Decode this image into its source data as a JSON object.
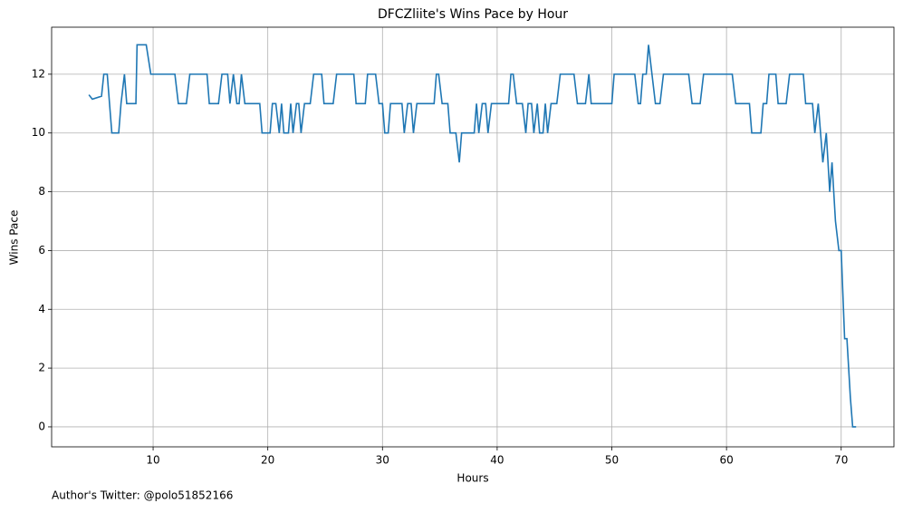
{
  "chart_data": {
    "type": "line",
    "title": "DFCZliite's Wins Pace by Hour",
    "xlabel": "Hours",
    "ylabel": "Wins Pace",
    "annotation": "Author's Twitter: @polo51852166",
    "color": "#1f77b4",
    "grid": true,
    "xlim": [
      1.15,
      74.6
    ],
    "ylim": [
      -0.68,
      13.6
    ],
    "xticks": [
      10,
      20,
      30,
      40,
      50,
      60,
      70
    ],
    "yticks": [
      0,
      2,
      4,
      6,
      8,
      10,
      12
    ],
    "x": [
      4.4,
      4.7,
      5.5,
      5.7,
      6.0,
      6.4,
      7.0,
      7.2,
      7.5,
      7.7,
      8.5,
      8.6,
      9.4,
      9.8,
      11.9,
      12.2,
      12.9,
      13.2,
      14.7,
      14.9,
      15.7,
      16.0,
      16.5,
      16.7,
      17.0,
      17.3,
      17.5,
      17.7,
      18.0,
      19.3,
      19.5,
      20.2,
      20.4,
      20.7,
      21.0,
      21.2,
      21.4,
      21.8,
      22.0,
      22.2,
      22.5,
      22.7,
      22.9,
      23.2,
      23.7,
      24.0,
      24.7,
      24.9,
      25.7,
      26.0,
      27.5,
      27.7,
      28.5,
      28.7,
      29.4,
      29.7,
      30.0,
      30.2,
      30.5,
      30.7,
      31.7,
      31.9,
      32.2,
      32.5,
      32.7,
      33.0,
      34.5,
      34.7,
      34.9,
      35.2,
      35.7,
      35.9,
      36.4,
      36.7,
      36.9,
      38.0,
      38.2,
      38.4,
      38.7,
      39.0,
      39.2,
      39.5,
      41.0,
      41.2,
      41.4,
      41.7,
      42.2,
      42.5,
      42.7,
      43.0,
      43.2,
      43.5,
      43.7,
      44.0,
      44.2,
      44.4,
      44.7,
      45.2,
      45.5,
      46.7,
      47.0,
      47.7,
      48.0,
      48.2,
      50.0,
      50.2,
      52.0,
      52.3,
      52.5,
      52.7,
      53.0,
      53.2,
      53.5,
      53.8,
      54.2,
      54.5,
      56.7,
      57.0,
      57.7,
      58.0,
      60.2,
      60.5,
      60.8,
      62.0,
      62.2,
      63.0,
      63.2,
      63.5,
      63.7,
      64.3,
      64.5,
      65.2,
      65.5,
      66.7,
      66.9,
      67.5,
      67.7,
      68.0,
      68.2,
      68.4,
      68.7,
      69.0,
      69.2,
      69.5,
      69.8,
      70.0,
      70.3,
      70.5,
      70.8,
      71.0,
      71.3
    ],
    "values": [
      11.3,
      11.15,
      11.25,
      12,
      12,
      10,
      10,
      11,
      12,
      11,
      11,
      13,
      13,
      12,
      12,
      11,
      11,
      12,
      12,
      11,
      11,
      12,
      12,
      11,
      12,
      11,
      11,
      12,
      11,
      11,
      10,
      10,
      11,
      11,
      10,
      11,
      10,
      10,
      11,
      10,
      11,
      11,
      10,
      11,
      11,
      12,
      12,
      11,
      11,
      12,
      12,
      11,
      11,
      12,
      12,
      11,
      11,
      10,
      10,
      11,
      11,
      10,
      11,
      11,
      10,
      11,
      11,
      12,
      12,
      11,
      11,
      10,
      10,
      9,
      10,
      10,
      11,
      10,
      11,
      11,
      10,
      11,
      11,
      12,
      12,
      11,
      11,
      10,
      11,
      11,
      10,
      11,
      10,
      10,
      11,
      10,
      11,
      11,
      12,
      12,
      11,
      11,
      12,
      11,
      11,
      12,
      12,
      11,
      11,
      12,
      12,
      13,
      12,
      11,
      11,
      12,
      12,
      11,
      11,
      12,
      12,
      12,
      11,
      11,
      10,
      10,
      11,
      11,
      12,
      12,
      11,
      11,
      12,
      12,
      11,
      11,
      10,
      11,
      10,
      9,
      10,
      8,
      9,
      7,
      6,
      6,
      3,
      3,
      1,
      0,
      0
    ]
  }
}
